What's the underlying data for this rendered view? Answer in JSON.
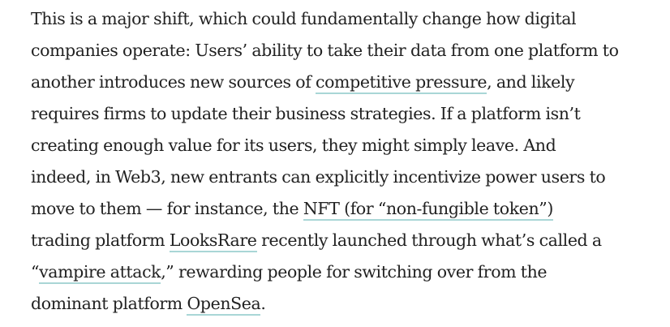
{
  "paragraph": {
    "l1": "This is a major shift, which could fundamentally change how digital",
    "l2": "companies operate: Users’ ability to take their data from one platform to",
    "l3_pre": "another introduces new sources of ",
    "link_competitive_pressure": "competitive pressure",
    "l3_post": ", and likely",
    "l4": "requires firms to update their business strategies. If a platform isn’t",
    "l5": "creating enough value for its users, they might simply leave. And",
    "l6": "indeed, in Web3, new entrants can explicitly incentivize power users to",
    "l7_pre": "move to them — for instance, the ",
    "link_nft": "NFT (for “non-fungible token”)",
    "l8_pre": "trading platform ",
    "link_looksrare": "LooksRare",
    "l8_post": " recently launched through what’s called a",
    "l9_pre": "“",
    "link_vampire_attack": "vampire attack",
    "l9_post": ",” rewarding people for switching over from the",
    "l10_pre": "dominant platform ",
    "link_opensea": "OpenSea",
    "l10_post": "."
  },
  "colors": {
    "text": "#222222",
    "link_underline": "#a9d6d6",
    "background": "#ffffff"
  }
}
